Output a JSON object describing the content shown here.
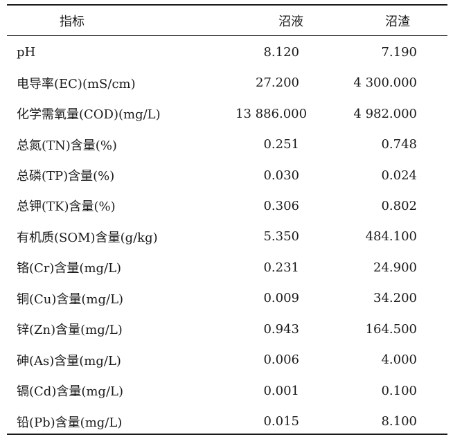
{
  "table": {
    "headers": {
      "metric": "指标",
      "biogas_slurry": "沼液",
      "biogas_residue": "沼渣"
    },
    "rows": [
      {
        "metric": "pH",
        "biogas_slurry": "8.120",
        "biogas_residue": "7.190"
      },
      {
        "metric": "电导率(EC)(mS/cm)",
        "biogas_slurry": "27.200",
        "biogas_residue": "4 300.000"
      },
      {
        "metric": "化学需氧量(COD)(mg/L)",
        "biogas_slurry": "13 886.000",
        "biogas_residue": "4 982.000"
      },
      {
        "metric": "总氮(TN)含量(%)",
        "biogas_slurry": "0.251",
        "biogas_residue": "0.748"
      },
      {
        "metric": "总磷(TP)含量(%)",
        "biogas_slurry": "0.030",
        "biogas_residue": "0.024"
      },
      {
        "metric": "总钾(TK)含量(%)",
        "biogas_slurry": "0.306",
        "biogas_residue": "0.802"
      },
      {
        "metric": "有机质(SOM)含量(g/kg)",
        "biogas_slurry": "5.350",
        "biogas_residue": "484.100"
      },
      {
        "metric": "铬(Cr)含量(mg/L)",
        "biogas_slurry": "0.231",
        "biogas_residue": "24.900"
      },
      {
        "metric": "铜(Cu)含量(mg/L)",
        "biogas_slurry": "0.009",
        "biogas_residue": "34.200"
      },
      {
        "metric": "锌(Zn)含量(mg/L)",
        "biogas_slurry": "0.943",
        "biogas_residue": "164.500"
      },
      {
        "metric": "砷(As)含量(mg/L)",
        "biogas_slurry": "0.006",
        "biogas_residue": "4.000"
      },
      {
        "metric": "镉(Cd)含量(mg/L)",
        "biogas_slurry": "0.001",
        "biogas_residue": "0.100"
      },
      {
        "metric": "铅(Pb)含量(mg/L)",
        "biogas_slurry": "0.015",
        "biogas_residue": "8.100"
      }
    ]
  }
}
